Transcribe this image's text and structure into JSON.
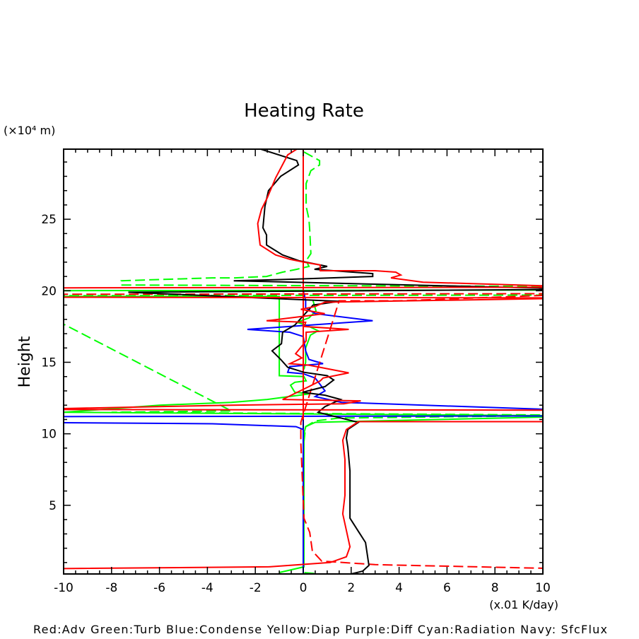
{
  "chart_data": {
    "type": "line",
    "title": "Heating Rate",
    "ylabel": "Height",
    "yunit": "(×10⁴ m)",
    "xunit": "(x.01 K/day)",
    "xlim": [
      -10,
      10
    ],
    "ylim": [
      0.2,
      29.9
    ],
    "xticks": [
      "-10",
      "-8",
      "-6",
      "-4",
      "-2",
      "0",
      "2",
      "4",
      "6",
      "8",
      "10"
    ],
    "yticks": [
      "5",
      "10",
      "15",
      "20",
      "25"
    ],
    "grid": false,
    "legend_text": "Red:Adv   Green:Turb   Blue:Condense   Yellow:Diap   Purple:Diff   Cyan:Radiation   Navy: SfcFlux",
    "series": [
      {
        "color": "#000080",
        "dash": false,
        "points": [
          [
            0,
            29.9
          ],
          [
            0,
            0.2
          ]
        ]
      },
      {
        "color": "#00ff00",
        "dash": true,
        "points": [
          [
            0.03,
            29.7
          ],
          [
            0.68,
            29.1
          ],
          [
            0.68,
            28.8
          ],
          [
            0.32,
            28.4
          ],
          [
            0.12,
            27.5
          ],
          [
            0.12,
            25.9
          ],
          [
            0.24,
            25.0
          ],
          [
            0.27,
            24.2
          ],
          [
            0.32,
            22.6
          ],
          [
            0.12,
            22.1
          ],
          [
            0.24,
            21.7
          ],
          [
            -0.27,
            21.5
          ],
          [
            -0.86,
            21.3
          ],
          [
            -1.53,
            21.0
          ],
          [
            -2.83,
            20.9
          ],
          [
            -3.8,
            20.9
          ],
          [
            -7.6,
            20.7
          ],
          [
            -7.6,
            20.4
          ],
          [
            12,
            20.3
          ],
          [
            12,
            19.7
          ],
          [
            -12,
            19.65
          ],
          [
            -12,
            19.4
          ],
          [
            -3,
            11.6
          ],
          [
            -8,
            11.5
          ],
          [
            12,
            11.3
          ],
          [
            1.5,
            11.1
          ],
          [
            0.5,
            10.9
          ],
          [
            0.1,
            10.5
          ],
          [
            0,
            9
          ],
          [
            0,
            0.3
          ],
          [
            0.7,
            0.2
          ]
        ]
      },
      {
        "color": "#00ff00",
        "dash": false,
        "points": [
          [
            10.5,
            20.05
          ],
          [
            -12,
            20.0
          ],
          [
            -12,
            19.6
          ],
          [
            -1.0,
            19.6
          ],
          [
            -1.0,
            14.06
          ],
          [
            0.03,
            14.0
          ],
          [
            0.12,
            13.7
          ],
          [
            -0.35,
            13.6
          ],
          [
            -0.53,
            13.4
          ],
          [
            -0.35,
            12.9
          ],
          [
            0.3,
            12.8
          ],
          [
            -1.5,
            12.4
          ],
          [
            -3,
            12.2
          ],
          [
            -6,
            12.0
          ],
          [
            -10,
            11.5
          ],
          [
            12,
            11.25
          ],
          [
            0.5,
            10.8
          ],
          [
            0.1,
            10.5
          ],
          [
            0.03,
            10.0
          ],
          [
            0.03,
            0.7
          ],
          [
            -1.0,
            0.3
          ]
        ]
      },
      {
        "color": "#00ff00",
        "dash": false,
        "points": [
          [
            0.41,
            19.3
          ],
          [
            0.53,
            18.6
          ],
          [
            0.24,
            18.1
          ],
          [
            -0.27,
            17.8
          ],
          [
            0.12,
            17.6
          ],
          [
            0.62,
            17.2
          ],
          [
            0.3,
            16.9
          ],
          [
            0.1,
            16.0
          ],
          [
            0.1,
            15.0
          ],
          [
            0.03,
            14.5
          ]
        ]
      },
      {
        "color": "#0000ff",
        "dash": false,
        "points": [
          [
            0,
            20.0
          ],
          [
            0.1,
            19.3
          ],
          [
            0.1,
            18.8
          ],
          [
            0.5,
            18.4
          ],
          [
            2.9,
            17.9
          ],
          [
            -2.33,
            17.3
          ],
          [
            -0.56,
            17.1
          ],
          [
            0,
            16.8
          ],
          [
            0.1,
            15.8
          ],
          [
            0.24,
            15.2
          ],
          [
            0.83,
            14.9
          ],
          [
            -0.56,
            14.7
          ],
          [
            -0.65,
            14.3
          ],
          [
            0,
            14.2
          ],
          [
            0.5,
            13.9
          ],
          [
            0.91,
            13.0
          ],
          [
            0.5,
            12.6
          ],
          [
            1.6,
            12.2
          ],
          [
            12,
            11.6
          ],
          [
            12,
            11.25
          ],
          [
            -12,
            11.2
          ],
          [
            -12,
            10.8
          ],
          [
            -3.8,
            10.7
          ],
          [
            -0.3,
            10.5
          ],
          [
            0,
            10.3
          ],
          [
            0,
            0.2
          ]
        ]
      },
      {
        "color": "#ff0000",
        "dash": false,
        "points": [
          [
            0,
            29.9
          ],
          [
            0,
            11.0
          ]
        ]
      },
      {
        "color": "#ff0000",
        "dash": true,
        "points": [
          [
            -12,
            19.75
          ],
          [
            12,
            19.8
          ],
          [
            4.0,
            19.3
          ],
          [
            1.5,
            19.3
          ],
          [
            -0.1,
            10.8
          ],
          [
            -0.1,
            10.2
          ],
          [
            -0.1,
            9.4
          ],
          [
            0.03,
            4.1
          ],
          [
            0.27,
            3.1
          ],
          [
            0.38,
            1.8
          ],
          [
            0.77,
            1.1
          ],
          [
            3,
            0.85
          ],
          [
            10,
            0.6
          ]
        ]
      },
      {
        "color": "#000000",
        "dash": false,
        "points": [
          [
            -1.77,
            29.9
          ],
          [
            -0.27,
            29.1
          ],
          [
            -0.2,
            28.8
          ],
          [
            -0.94,
            28.0
          ],
          [
            -1.45,
            27.0
          ],
          [
            -1.6,
            25.9
          ],
          [
            -1.68,
            24.4
          ],
          [
            -1.53,
            23.9
          ],
          [
            -1.53,
            23.2
          ],
          [
            -0.86,
            22.5
          ],
          [
            -0.18,
            22.1
          ],
          [
            1.0,
            21.7
          ],
          [
            0.47,
            21.5
          ],
          [
            2.9,
            21.2
          ],
          [
            2.9,
            21.0
          ],
          [
            -0.56,
            20.8
          ],
          [
            -2.9,
            20.7
          ],
          [
            12,
            20.1
          ],
          [
            -7.3,
            19.9
          ],
          [
            1.5,
            19.26
          ],
          [
            0.41,
            19.0
          ],
          [
            -0.03,
            18.2
          ],
          [
            -0.35,
            17.6
          ],
          [
            -0.86,
            17.1
          ],
          [
            -0.91,
            16.3
          ],
          [
            -1.3,
            15.8
          ],
          [
            -0.94,
            15.2
          ],
          [
            -0.65,
            14.65
          ],
          [
            0.03,
            14.3
          ],
          [
            1.0,
            14.06
          ],
          [
            1.27,
            13.76
          ],
          [
            0.91,
            13.3
          ],
          [
            -0.03,
            12.9
          ],
          [
            0.91,
            12.7
          ],
          [
            1.56,
            12.4
          ],
          [
            0.91,
            11.9
          ],
          [
            0.62,
            11.5
          ],
          [
            2.3,
            10.8
          ],
          [
            1.86,
            10.3
          ],
          [
            1.8,
            9.7
          ],
          [
            1.86,
            9.06
          ],
          [
            1.95,
            7.4
          ],
          [
            1.95,
            4.1
          ],
          [
            2.6,
            2.4
          ],
          [
            2.74,
            0.8
          ],
          [
            2.48,
            0.4
          ],
          [
            2.0,
            0.2
          ]
        ]
      },
      {
        "color": "#ff0000",
        "dash": false,
        "points": [
          [
            -0.27,
            29.9
          ],
          [
            -0.65,
            29.5
          ],
          [
            -1.15,
            27.9
          ],
          [
            -1.5,
            26.5
          ],
          [
            -1.74,
            25.7
          ],
          [
            -1.9,
            24.7
          ],
          [
            -1.83,
            23.6
          ],
          [
            -1.8,
            23.2
          ],
          [
            -1.15,
            22.5
          ],
          [
            -0.56,
            22.2
          ],
          [
            0.03,
            22.0
          ],
          [
            0.71,
            21.8
          ],
          [
            0.71,
            21.4
          ],
          [
            3.0,
            21.4
          ],
          [
            3.86,
            21.3
          ],
          [
            4.07,
            21.1
          ],
          [
            3.66,
            20.9
          ],
          [
            5.0,
            20.6
          ],
          [
            12,
            20.25
          ],
          [
            -12,
            20.2
          ],
          [
            -12,
            19.55
          ],
          [
            12,
            19.5
          ],
          [
            0.9,
            19.2
          ],
          [
            0.5,
            18.9
          ],
          [
            -0.1,
            18.7
          ],
          [
            0.9,
            18.4
          ],
          [
            -1.53,
            17.9
          ],
          [
            0.1,
            17.8
          ],
          [
            0.05,
            17.5
          ],
          [
            1.9,
            17.3
          ],
          [
            0.12,
            17.1
          ],
          [
            0.12,
            16.5
          ],
          [
            -0.32,
            15.6
          ],
          [
            -0.06,
            15.3
          ],
          [
            -0.56,
            14.9
          ],
          [
            0.24,
            14.8
          ],
          [
            1.9,
            14.26
          ],
          [
            0.83,
            13.9
          ],
          [
            0.71,
            13.7
          ],
          [
            0.24,
            13.3
          ],
          [
            -0.86,
            12.4
          ],
          [
            2.4,
            12.3
          ],
          [
            1.7,
            12.1
          ],
          [
            -3.0,
            12.0
          ],
          [
            -12,
            11.7
          ],
          [
            12,
            11.65
          ],
          [
            12,
            10.85
          ],
          [
            2.3,
            10.85
          ],
          [
            1.8,
            10.3
          ],
          [
            1.65,
            9.55
          ],
          [
            1.74,
            8.2
          ],
          [
            1.74,
            5.7
          ],
          [
            1.65,
            4.4
          ],
          [
            1.95,
            2.1
          ],
          [
            1.8,
            1.4
          ],
          [
            1.12,
            1.0
          ],
          [
            -1.45,
            0.7
          ],
          [
            -12,
            0.55
          ]
        ]
      }
    ]
  }
}
